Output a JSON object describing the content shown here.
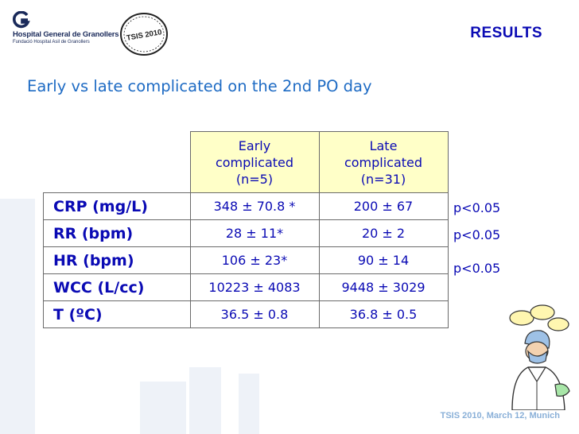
{
  "header": {
    "logo_name": "Hospital General de Granollers",
    "logo_sub": "Fundació Hospital Asil de Granollers",
    "seal_text": "TSIS 2010",
    "section_label": "RESULTS"
  },
  "subtitle": "Early vs late complicated on the 2nd PO day",
  "table": {
    "columns": [
      {
        "line1": "Early",
        "line2": "complicated",
        "line3": "(n=5)"
      },
      {
        "line1": "Late",
        "line2": "complicated",
        "line3": "(n=31)"
      }
    ],
    "rows": [
      {
        "label": "CRP (mg/L)",
        "early": "348 ± 70.8 *",
        "late": "200 ± 67",
        "p": "p<0.05"
      },
      {
        "label": "RR (bpm)",
        "early": "28 ± 11*",
        "late": "20 ± 2",
        "p": "p<0.05"
      },
      {
        "label": "HR (bpm)",
        "early": "106 ± 23*",
        "late": "90 ± 14",
        "p": "p<0.05"
      },
      {
        "label": "WCC (L/cc)",
        "early": "10223 ± 4083",
        "late": "9448 ± 3029",
        "p": ""
      },
      {
        "label": "T (ºC)",
        "early": "36.5 ± 0.8",
        "late": "36.8 ± 0.5",
        "p": ""
      }
    ]
  },
  "footer": "TSIS 2010, March 12, Munich",
  "colors": {
    "title_blue": "#0a0ab4",
    "subtitle_blue": "#1e6bc4",
    "header_fill": "#ffffc8",
    "footer_blue": "#8ab0d8"
  },
  "icons": {
    "logo": "hospital-logo-icon",
    "seal": "tsis-seal-icon",
    "clipart": "surgeon-clipart-icon"
  }
}
